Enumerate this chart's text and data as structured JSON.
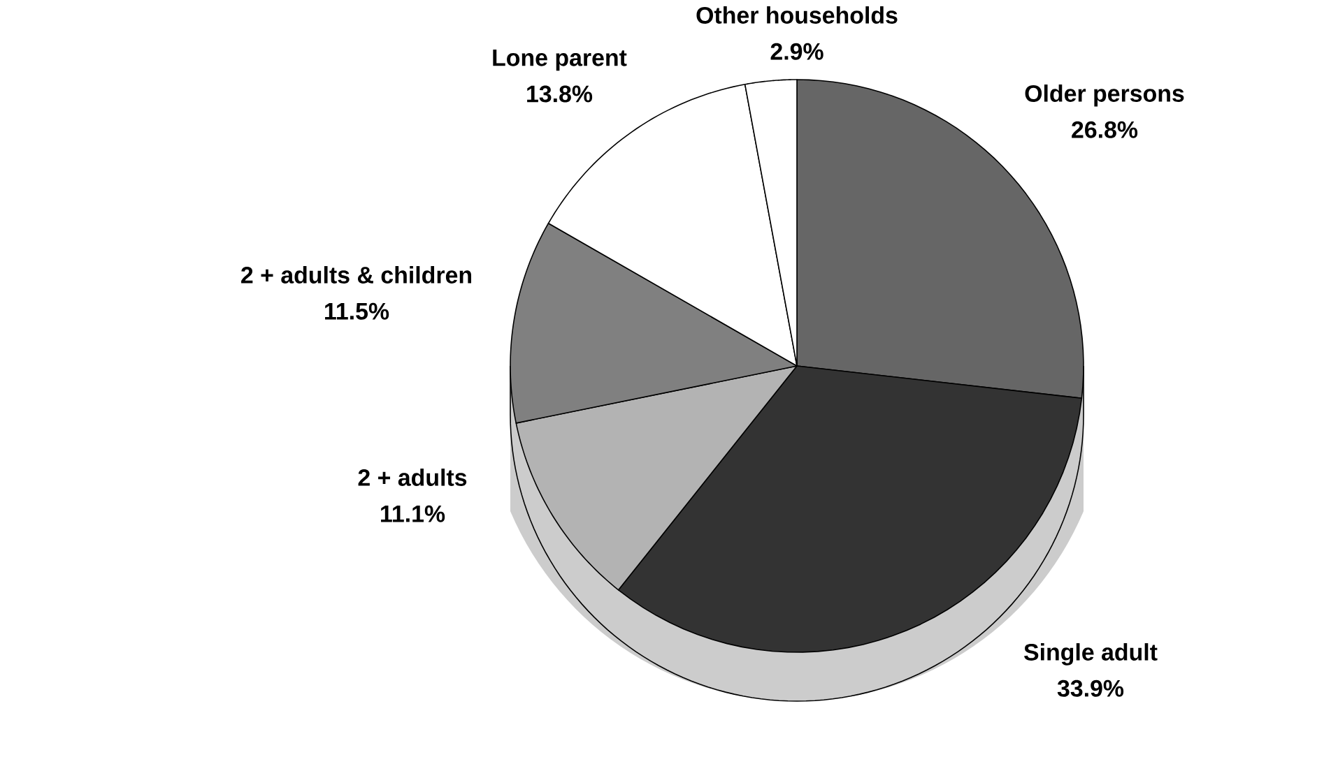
{
  "chart_data": {
    "type": "pie",
    "categories": [
      "Older persons",
      "Single adult",
      "2 + adults",
      "2 + adults & children",
      "Lone parent",
      "Other households"
    ],
    "values": [
      26.8,
      33.9,
      11.1,
      11.5,
      13.8,
      2.9
    ],
    "value_labels": [
      "26.8%",
      "33.9%",
      "11.1%",
      "11.5%",
      "13.8%",
      "2.9%"
    ],
    "colors": [
      "#666666",
      "#333333",
      "#b3b3b3",
      "#808080",
      "#ffffff",
      "#ffffff"
    ]
  }
}
